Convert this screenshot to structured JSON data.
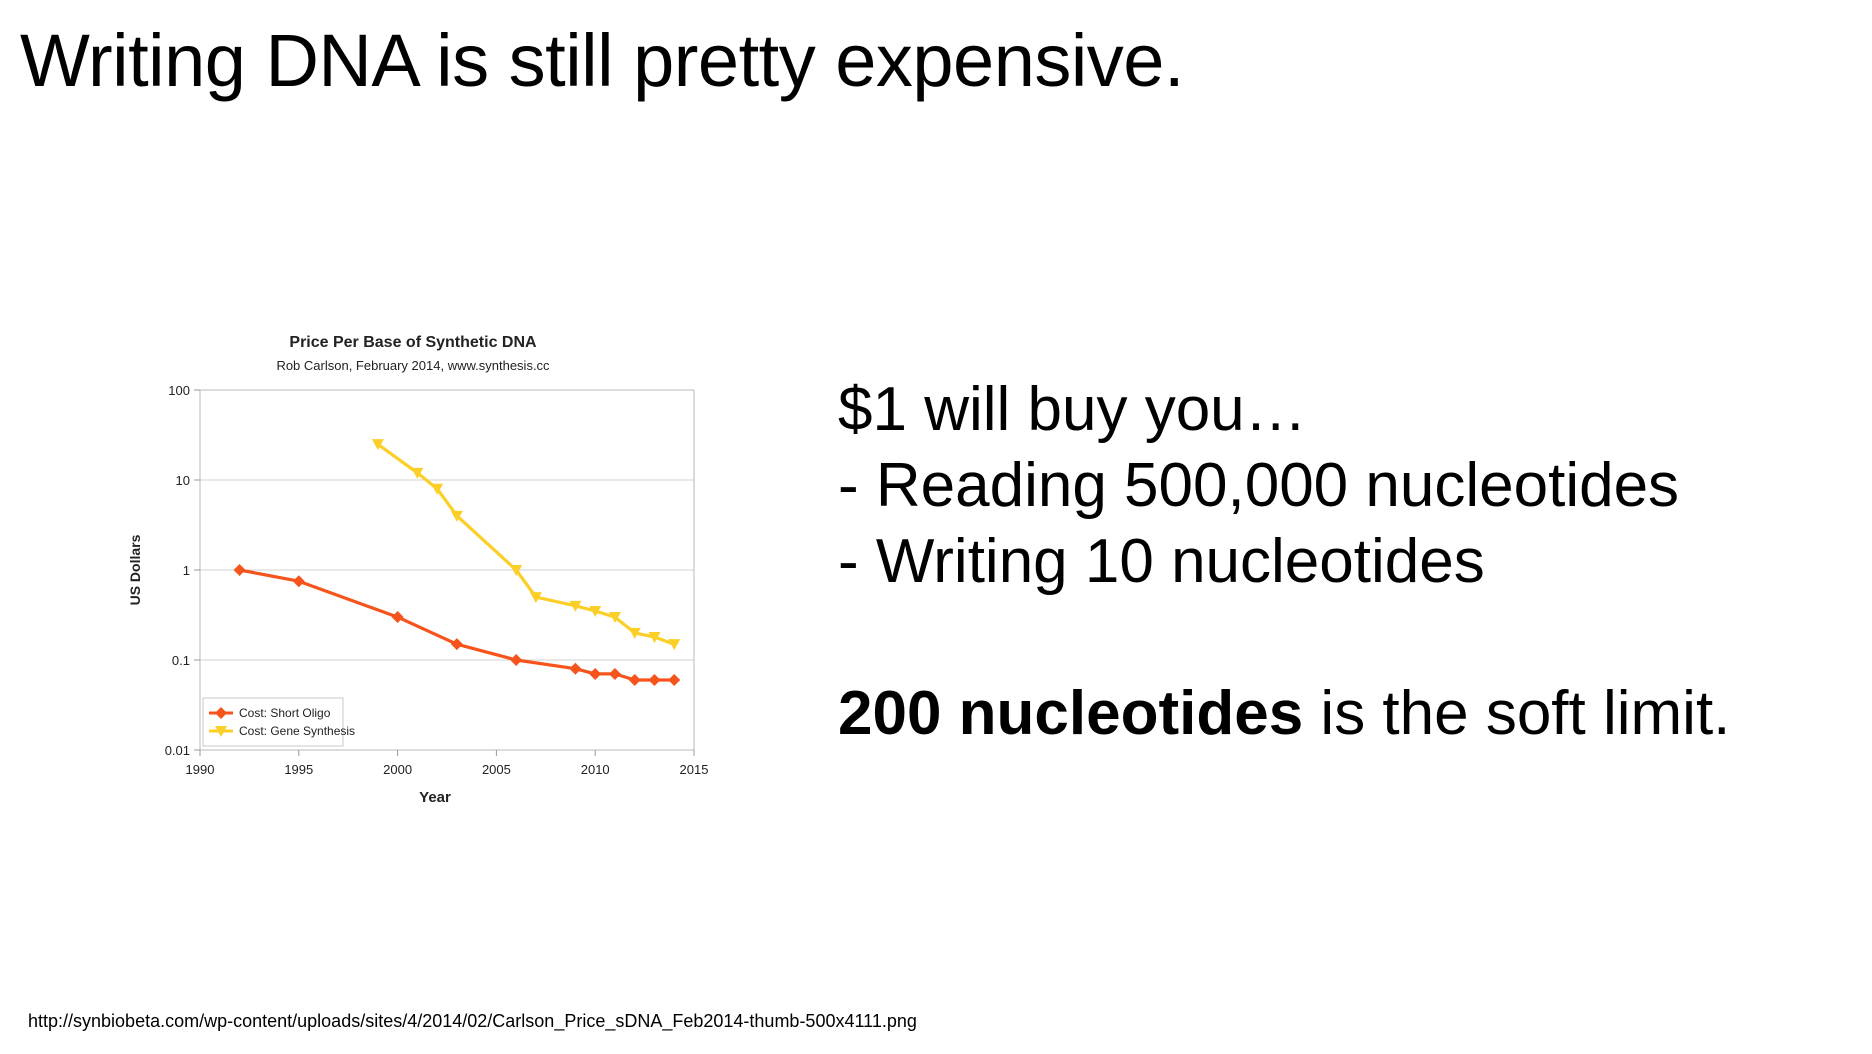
{
  "slide": {
    "title": "Writing DNA is still pretty expensive.",
    "source_url": "http://synbiobeta.com/wp-content/uploads/sites/4/2014/02/Carlson_Price_sDNA_Feb2014-thumb-500x4111.png"
  },
  "text_panel": {
    "line1": "$1 will buy you…",
    "line2": "- Reading 500,000 nucleotides",
    "line3": "- Writing 10 nucleotides",
    "limit_bold": "200 nucleotides",
    "limit_rest": " is the soft limit."
  },
  "chart_data": {
    "type": "line",
    "title": "Price Per Base of Synthetic DNA",
    "subtitle": "Rob Carlson, February 2014, www.synthesis.cc",
    "xlabel": "Year",
    "ylabel": "US Dollars",
    "yscale": "log",
    "xlim": [
      1990,
      2015
    ],
    "ylim": [
      0.01,
      100
    ],
    "xticks": [
      "1990",
      "1995",
      "2000",
      "2005",
      "2010",
      "2015"
    ],
    "yticks": [
      "100",
      "10",
      "1",
      "0.1",
      "0.01"
    ],
    "grid": "horizontal",
    "legend_position": "bottom-left",
    "series": [
      {
        "name": "Cost: Short Oligo",
        "color": "#f7531c",
        "marker": "diamond",
        "x": [
          1992,
          1995,
          2000,
          2003,
          2006,
          2009,
          2010,
          2011,
          2012,
          2013,
          2014
        ],
        "y": [
          1,
          0.75,
          0.3,
          0.15,
          0.1,
          0.08,
          0.07,
          0.07,
          0.06,
          0.06,
          0.06
        ]
      },
      {
        "name": "Cost: Gene Synthesis",
        "color": "#fbcf27",
        "marker": "triangle-down",
        "x": [
          1999,
          2001,
          2002,
          2003,
          2006,
          2007,
          2009,
          2010,
          2011,
          2012,
          2013,
          2014
        ],
        "y": [
          25,
          12,
          8,
          4,
          1,
          0.5,
          0.4,
          0.35,
          0.3,
          0.2,
          0.18,
          0.15
        ]
      }
    ]
  }
}
